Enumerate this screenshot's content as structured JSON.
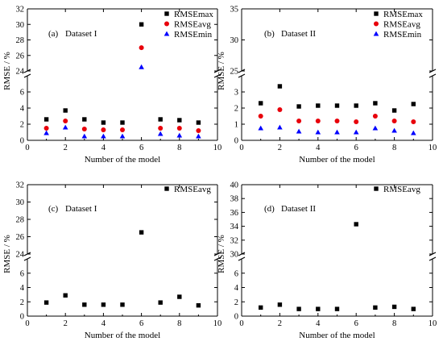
{
  "chart_data": [
    {
      "type": "scatter",
      "title": "Dataset I",
      "panel_label": "(a)",
      "xlabel": "Number of the model",
      "ylabel": "RMSE / %",
      "xlim": [
        0,
        10
      ],
      "x_ticks": [
        0,
        2,
        4,
        6,
        8,
        10
      ],
      "axis_break": true,
      "ylim_lower": [
        0,
        8
      ],
      "y_ticks_lower": [
        0,
        2,
        4,
        6
      ],
      "ylim_upper": [
        24,
        32
      ],
      "y_ticks_upper": [
        24,
        26,
        28,
        30,
        32
      ],
      "legend_position": "top-right",
      "series": [
        {
          "name": "RMSEmax",
          "marker": "square",
          "color": "#000000",
          "x": [
            1,
            2,
            3,
            4,
            5,
            6,
            7,
            8,
            9
          ],
          "y": [
            2.6,
            3.7,
            2.6,
            2.2,
            2.2,
            30.0,
            2.6,
            2.5,
            2.2
          ]
        },
        {
          "name": "RMSEavg",
          "marker": "circle",
          "color": "#e8000b",
          "x": [
            1,
            2,
            3,
            4,
            5,
            6,
            7,
            8,
            9
          ],
          "y": [
            1.5,
            2.4,
            1.4,
            1.3,
            1.3,
            27.0,
            1.5,
            1.5,
            1.2
          ]
        },
        {
          "name": "RMSEmin",
          "marker": "triangle",
          "color": "#0000ff",
          "x": [
            1,
            2,
            3,
            4,
            5,
            6,
            7,
            8,
            9
          ],
          "y": [
            0.9,
            1.6,
            0.5,
            0.5,
            0.5,
            24.5,
            0.8,
            0.6,
            0.5
          ]
        }
      ]
    },
    {
      "type": "scatter",
      "title": "Dataset II",
      "panel_label": "(b)",
      "xlabel": "Number of the model",
      "ylabel": "RMSE / %",
      "xlim": [
        0,
        10
      ],
      "x_ticks": [
        0,
        2,
        4,
        6,
        8,
        10
      ],
      "axis_break": true,
      "ylim_lower": [
        0,
        4
      ],
      "y_ticks_lower": [
        0,
        1,
        2,
        3
      ],
      "ylim_upper": [
        25,
        35
      ],
      "y_ticks_upper": [
        25,
        30,
        35
      ],
      "legend_position": "top-right",
      "series": [
        {
          "name": "RMSEmax",
          "marker": "square",
          "color": "#000000",
          "x": [
            1,
            2,
            3,
            4,
            5,
            6,
            7,
            8,
            9
          ],
          "y": [
            2.3,
            3.35,
            2.1,
            2.15,
            2.15,
            2.15,
            2.3,
            1.85,
            2.25
          ]
        },
        {
          "name": "RMSEavg",
          "marker": "circle",
          "color": "#e8000b",
          "x": [
            1,
            2,
            3,
            4,
            5,
            6,
            7,
            8,
            9
          ],
          "y": [
            1.5,
            1.9,
            1.2,
            1.2,
            1.2,
            1.15,
            1.5,
            1.2,
            1.15
          ]
        },
        {
          "name": "RMSEmin",
          "marker": "triangle",
          "color": "#0000ff",
          "x": [
            1,
            2,
            3,
            4,
            5,
            6,
            7,
            8,
            9
          ],
          "y": [
            0.75,
            0.8,
            0.55,
            0.5,
            0.5,
            0.5,
            0.75,
            0.6,
            0.45
          ]
        }
      ]
    },
    {
      "type": "scatter",
      "title": "Dataset I",
      "panel_label": "(c)",
      "xlabel": "Number of the model",
      "ylabel": "RMSE / %",
      "xlim": [
        0,
        10
      ],
      "x_ticks": [
        0,
        2,
        4,
        6,
        8,
        10
      ],
      "axis_break": true,
      "ylim_lower": [
        0,
        8
      ],
      "y_ticks_lower": [
        0,
        2,
        4,
        6
      ],
      "ylim_upper": [
        24,
        32
      ],
      "y_ticks_upper": [
        24,
        26,
        28,
        30,
        32
      ],
      "legend_position": "top-right",
      "series": [
        {
          "name": "RMSEavg",
          "marker": "square",
          "color": "#000000",
          "x": [
            1,
            2,
            3,
            4,
            5,
            6,
            7,
            8,
            9
          ],
          "y": [
            1.9,
            2.9,
            1.6,
            1.6,
            1.6,
            26.5,
            1.9,
            2.7,
            1.5
          ]
        }
      ]
    },
    {
      "type": "scatter",
      "title": "Dataset II",
      "panel_label": "(d)",
      "xlabel": "Number of the model",
      "ylabel": "RMSE / %",
      "xlim": [
        0,
        10
      ],
      "x_ticks": [
        0,
        2,
        4,
        6,
        8,
        10
      ],
      "axis_break": true,
      "ylim_lower": [
        0,
        8
      ],
      "y_ticks_lower": [
        0,
        2,
        4,
        6
      ],
      "ylim_upper": [
        30,
        40
      ],
      "y_ticks_upper": [
        30,
        32,
        34,
        36,
        38,
        40
      ],
      "legend_position": "top-right",
      "series": [
        {
          "name": "RMSEavg",
          "marker": "square",
          "color": "#000000",
          "x": [
            1,
            2,
            3,
            4,
            5,
            6,
            7,
            8,
            9
          ],
          "y": [
            1.2,
            1.6,
            1.0,
            1.0,
            1.0,
            34.3,
            1.2,
            1.3,
            1.0
          ]
        }
      ]
    }
  ]
}
